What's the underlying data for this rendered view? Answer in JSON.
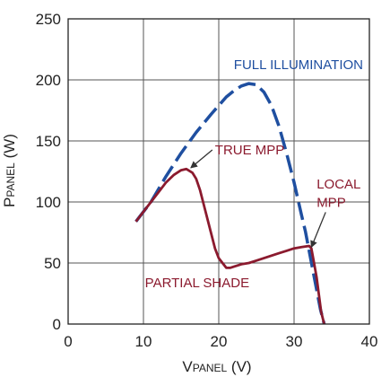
{
  "chart_data": {
    "type": "line",
    "title": "",
    "xlabel": {
      "main": "V",
      "sub": "PANEL",
      "unit": " (V)"
    },
    "ylabel": {
      "main": "P",
      "sub": "PANEL",
      "unit": " (W)"
    },
    "xlim": [
      0,
      40
    ],
    "ylim": [
      0,
      250
    ],
    "xticks": [
      "0",
      "10",
      "20",
      "30",
      "40"
    ],
    "yticks": [
      "0",
      "50",
      "100",
      "150",
      "200",
      "250"
    ],
    "grid": true,
    "colors": {
      "full": "#1f4fa0",
      "partial": "#8b1a2e",
      "grid": "#555555",
      "arrow": "#333333"
    },
    "series": [
      {
        "key": "full",
        "style": "dashed",
        "x": [
          9,
          11,
          13,
          15,
          17,
          19,
          20,
          21,
          22,
          23,
          24,
          25,
          26,
          27,
          28,
          29,
          30,
          31,
          31.5,
          32,
          32.5,
          33,
          33.5,
          34
        ],
        "y": [
          84,
          100,
          121,
          140,
          157,
          172,
          179,
          186,
          191,
          195,
          197,
          196,
          190,
          179,
          162,
          140,
          116,
          89,
          76,
          60,
          44,
          28,
          12,
          0
        ]
      },
      {
        "key": "partial",
        "style": "solid",
        "x": [
          9,
          10,
          11,
          12,
          13,
          14,
          15,
          15.7,
          16.5,
          17,
          17.5,
          18,
          18.5,
          19,
          19.5,
          20,
          20.5,
          21,
          21.5,
          22,
          23,
          24,
          25,
          26,
          27,
          28,
          29,
          30,
          31,
          32,
          32.3,
          32.6,
          33,
          33.3,
          33.6,
          34
        ],
        "y": [
          84,
          92,
          100,
          108,
          116,
          122,
          126,
          127,
          124,
          119,
          110,
          98,
          86,
          74,
          62,
          54,
          50,
          46,
          46,
          47,
          49,
          50,
          52,
          54,
          56,
          58,
          60,
          62,
          63,
          64,
          62,
          52,
          38,
          24,
          10,
          0
        ]
      }
    ],
    "annotations": [
      {
        "key": "full_label",
        "text": "FULL ILLUMINATION",
        "color": "blue",
        "x": 22,
        "y": 209
      },
      {
        "key": "true_mpp",
        "text": "TRUE MPP",
        "color": "red",
        "x": 19.5,
        "y": 139,
        "arrow_to": [
          16.3,
          128
        ]
      },
      {
        "key": "local_mpp_1",
        "text": "LOCAL",
        "color": "red",
        "x": 33,
        "y": 111
      },
      {
        "key": "local_mpp_2",
        "text": "MPP",
        "color": "red",
        "x": 33,
        "y": 96,
        "arrow_to": [
          32.3,
          63
        ]
      },
      {
        "key": "partial_label",
        "text": "PARTIAL SHADE",
        "color": "red",
        "x": 10.2,
        "y": 30
      }
    ]
  }
}
